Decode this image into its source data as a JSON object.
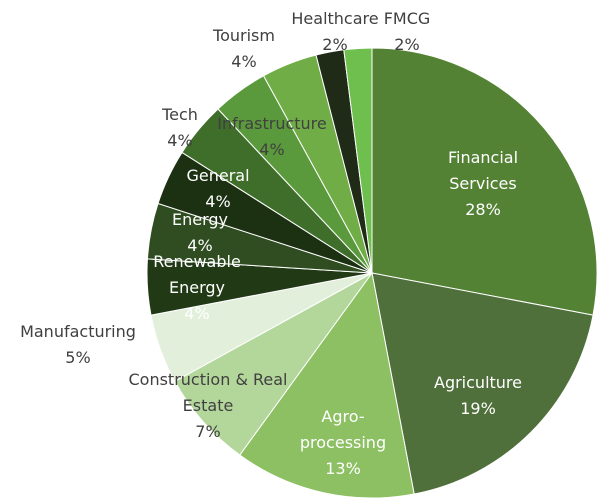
{
  "chart_data": {
    "type": "pie",
    "categories": [
      "Financial Services",
      "Agriculture",
      "Agro-processing",
      "Construction & Real Estate",
      "Manufacturing",
      "Renewable Energy",
      "Energy",
      "General",
      "Tech",
      "Infrastructure",
      "Tourism",
      "Healthcare",
      "FMCG"
    ],
    "values": [
      28,
      19,
      13,
      7,
      5,
      4,
      4,
      4,
      4,
      4,
      4,
      2,
      2
    ],
    "value_labels": [
      "28%",
      "19%",
      "13%",
      "7%",
      "5%",
      "4%",
      "4%",
      "4%",
      "4%",
      "4%",
      "4%",
      "2%",
      "2%"
    ],
    "colors": [
      "#548235",
      "#4f6f3b",
      "#8cc063",
      "#b3d69b",
      "#e2efda",
      "#213a15",
      "#2f4d20",
      "#1c3012",
      "#3f6e2b",
      "#5b9a3c",
      "#70ad47",
      "#1f2a17",
      "#6fbf4f"
    ]
  }
}
